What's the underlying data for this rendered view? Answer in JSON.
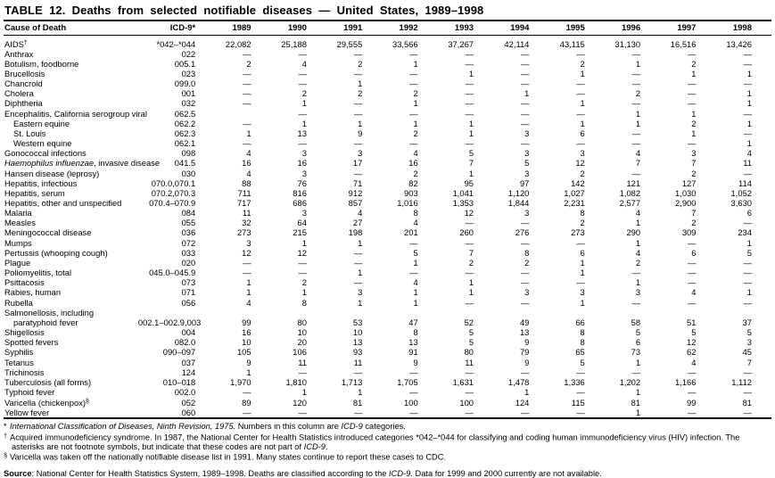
{
  "title": "TABLE 12. Deaths from selected notifiable diseases — United States, 1989–1998",
  "table": {
    "columns": [
      "Cause of Death",
      "ICD-9*",
      "1989",
      "1990",
      "1991",
      "1992",
      "1993",
      "1994",
      "1995",
      "1996",
      "1997",
      "1998"
    ],
    "no_deaths_symbol": "—",
    "rows": [
      {
        "cause": "AIDS",
        "sup": "†",
        "icd": "*042–*044",
        "values": [
          "22,082",
          "25,188",
          "29,555",
          "33,566",
          "37,267",
          "42,114",
          "43,115",
          "31,130",
          "16,516",
          "13,426"
        ]
      },
      {
        "cause": "Anthrax",
        "icd": "022",
        "values": [
          "—",
          "—",
          "—",
          "—",
          "—",
          "—",
          "—",
          "—",
          "—",
          "—"
        ]
      },
      {
        "cause": "Botulism, foodborne",
        "icd": "005.1",
        "values": [
          "2",
          "4",
          "2",
          "1",
          "—",
          "—",
          "2",
          "1",
          "2",
          "—"
        ]
      },
      {
        "cause": "Brucellosis",
        "icd": "023",
        "values": [
          "—",
          "—",
          "—",
          "—",
          "1",
          "—",
          "1",
          "—",
          "1",
          "1"
        ]
      },
      {
        "cause": "Chancroid",
        "icd": "099.0",
        "values": [
          "—",
          "—",
          "1",
          "—",
          "—",
          "—",
          "—",
          "—",
          "—",
          "—"
        ]
      },
      {
        "cause": "Cholera",
        "icd": "001",
        "values": [
          "—",
          "2",
          "2",
          "2",
          "—",
          "1",
          "—",
          "2",
          "—",
          "1"
        ]
      },
      {
        "cause": "Diphtheria",
        "icd": "032",
        "values": [
          "—",
          "1",
          "—",
          "1",
          "—",
          "—",
          "1",
          "—",
          "—",
          "1"
        ]
      },
      {
        "cause": "Encephalitis, California serogroup viral",
        "icd": "062.5",
        "values": [
          "",
          "—",
          "—",
          "—",
          "—",
          "—",
          "—",
          "1",
          "1",
          "—"
        ]
      },
      {
        "cause": "Eastern equine",
        "indent": true,
        "icd": "062.2",
        "values": [
          "—",
          "1",
          "1",
          "1",
          "1",
          "—",
          "1",
          "1",
          "2",
          "1"
        ]
      },
      {
        "cause": "St. Louis",
        "indent": true,
        "icd": "062.3",
        "values": [
          "1",
          "13",
          "9",
          "2",
          "1",
          "3",
          "6",
          "—",
          "1",
          "—"
        ]
      },
      {
        "cause": "Western equine",
        "indent": true,
        "icd": "062.1",
        "values": [
          "—",
          "—",
          "—",
          "—",
          "—",
          "—",
          "—",
          "—",
          "—",
          "1"
        ]
      },
      {
        "cause": "Gonococcal infections",
        "icd": "098",
        "values": [
          "4",
          "3",
          "3",
          "4",
          "5",
          "3",
          "3",
          "4",
          "3",
          "4"
        ]
      },
      {
        "cause_italic": "Haemophilus influenzae",
        "cause": ", invasive disease",
        "icd": "041.5",
        "values": [
          "16",
          "16",
          "17",
          "16",
          "7",
          "5",
          "12",
          "7",
          "7",
          "11"
        ]
      },
      {
        "cause": "Hansen disease (leprosy)",
        "icd": "030",
        "values": [
          "4",
          "3",
          "—",
          "2",
          "1",
          "3",
          "2",
          "—",
          "2",
          "—"
        ]
      },
      {
        "cause": "Hepatitis, infectious",
        "icd": "070.0,070.1",
        "values": [
          "88",
          "76",
          "71",
          "82",
          "95",
          "97",
          "142",
          "121",
          "127",
          "114"
        ]
      },
      {
        "cause": "Hepatitis, serum",
        "icd": "070.2,070.3",
        "values": [
          "711",
          "816",
          "912",
          "903",
          "1,041",
          "1,120",
          "1,027",
          "1,082",
          "1,030",
          "1,052"
        ]
      },
      {
        "cause": "Hepatitis, other and unspecified",
        "icd": "070.4–070.9",
        "values": [
          "717",
          "686",
          "857",
          "1,016",
          "1,353",
          "1,844",
          "2,231",
          "2,577",
          "2,900",
          "3,630"
        ]
      },
      {
        "cause": "Malaria",
        "icd": "084",
        "values": [
          "11",
          "3",
          "4",
          "8",
          "12",
          "3",
          "8",
          "4",
          "7",
          "6"
        ]
      },
      {
        "cause": "Measles",
        "icd": "055",
        "values": [
          "32",
          "64",
          "27",
          "4",
          "—",
          "—",
          "2",
          "1",
          "2",
          "—"
        ]
      },
      {
        "cause": "Meningococcal disease",
        "icd": "036",
        "values": [
          "273",
          "215",
          "198",
          "201",
          "260",
          "276",
          "273",
          "290",
          "309",
          "234"
        ]
      },
      {
        "cause": "Mumps",
        "icd": "072",
        "values": [
          "3",
          "1",
          "1",
          "—",
          "—",
          "—",
          "—",
          "1",
          "—",
          "1"
        ]
      },
      {
        "cause": "Pertussis (whooping cough)",
        "icd": "033",
        "values": [
          "12",
          "12",
          "—",
          "5",
          "7",
          "8",
          "6",
          "4",
          "6",
          "5"
        ]
      },
      {
        "cause": "Plague",
        "icd": "020",
        "values": [
          "—",
          "—",
          "—",
          "1",
          "2",
          "2",
          "1",
          "2",
          "—",
          "—"
        ]
      },
      {
        "cause": "Poliomyelitis, total",
        "icd": "045.0–045.9",
        "values": [
          "—",
          "—",
          "1",
          "—",
          "—",
          "—",
          "1",
          "—",
          "—",
          "—"
        ]
      },
      {
        "cause": "Psittacosis",
        "icd": "073",
        "values": [
          "1",
          "2",
          "—",
          "4",
          "1",
          "—",
          "—",
          "1",
          "—",
          "—"
        ]
      },
      {
        "cause": "Rabies, human",
        "icd": "071",
        "values": [
          "1",
          "1",
          "3",
          "1",
          "1",
          "3",
          "3",
          "3",
          "4",
          "1"
        ]
      },
      {
        "cause": "Rubella",
        "icd": "056",
        "values": [
          "4",
          "8",
          "1",
          "1",
          "—",
          "—",
          "1",
          "—",
          "—",
          "—"
        ]
      },
      {
        "cause": "Salmonellosis, including",
        "cause2": "paratyphoid fever",
        "icd": "002.1–002.9,003",
        "values": [
          "99",
          "80",
          "53",
          "47",
          "52",
          "49",
          "66",
          "58",
          "51",
          "37"
        ]
      },
      {
        "cause": "Shigellosis",
        "icd": "004",
        "values": [
          "16",
          "10",
          "10",
          "8",
          "5",
          "13",
          "8",
          "5",
          "5",
          "5"
        ]
      },
      {
        "cause": "Spotted fevers",
        "icd": "082.0",
        "values": [
          "10",
          "20",
          "13",
          "13",
          "5",
          "9",
          "8",
          "6",
          "12",
          "3"
        ]
      },
      {
        "cause": "Syphilis",
        "icd": "090–097",
        "values": [
          "105",
          "106",
          "93",
          "91",
          "80",
          "79",
          "65",
          "73",
          "62",
          "45"
        ]
      },
      {
        "cause": "Tetanus",
        "icd": "037",
        "values": [
          "9",
          "11",
          "11",
          "9",
          "11",
          "9",
          "5",
          "1",
          "4",
          "7"
        ]
      },
      {
        "cause": "Trichinosis",
        "icd": "124",
        "values": [
          "1",
          "—",
          "—",
          "—",
          "—",
          "—",
          "—",
          "—",
          "—",
          "—"
        ]
      },
      {
        "cause": "Tuberculosis (all forms)",
        "icd": "010–018",
        "values": [
          "1,970",
          "1,810",
          "1,713",
          "1,705",
          "1,631",
          "1,478",
          "1,336",
          "1,202",
          "1,166",
          "1,112"
        ]
      },
      {
        "cause": "Typhoid fever",
        "icd": "002.0",
        "values": [
          "—",
          "1",
          "1",
          "—",
          "—",
          "1",
          "—",
          "1",
          "—",
          "—"
        ]
      },
      {
        "cause": "Varicella (chickenpox)",
        "sup": "§",
        "icd": "052",
        "values": [
          "89",
          "120",
          "81",
          "100",
          "100",
          "124",
          "115",
          "81",
          "99",
          "81"
        ]
      },
      {
        "cause": "Yellow fever",
        "icd": "060",
        "values": [
          "—",
          "—",
          "—",
          "—",
          "—",
          "—",
          "—",
          "1",
          "—",
          "—"
        ]
      }
    ]
  },
  "footnotes": [
    {
      "marker": "*",
      "segments": [
        {
          "text": "International Classification of Diseases, Ninth Revision, 1975.",
          "italic": true
        },
        {
          "text": " Numbers in this column are "
        },
        {
          "text": "ICD-9",
          "italic": true
        },
        {
          "text": " categories."
        }
      ]
    },
    {
      "marker": "†",
      "segments": [
        {
          "text": "Acquired immunodeficiency syndrome.  In 1987, the National Center for Health Statistics introduced categories *042–*044 for classifying and coding human immunodeficiency virus (HIV) infection. The asterisks are not footnote symbols, but indicate that these codes are not part of "
        },
        {
          "text": "ICD-9",
          "italic": true
        },
        {
          "text": "."
        }
      ]
    },
    {
      "marker": "§",
      "segments": [
        {
          "text": "Varicella was taken off the nationally notifiable disease list in 1991. Many states continue to report these cases to CDC."
        }
      ]
    }
  ],
  "source": {
    "label": "Source",
    "segments": [
      {
        "text": ": National Center for Health Statistics System, 1989–1998. Deaths are classified according to the "
      },
      {
        "text": "ICD-9",
        "italic": true
      },
      {
        "text": ". Data for 1999 and 2000 currently are not available."
      }
    ]
  }
}
